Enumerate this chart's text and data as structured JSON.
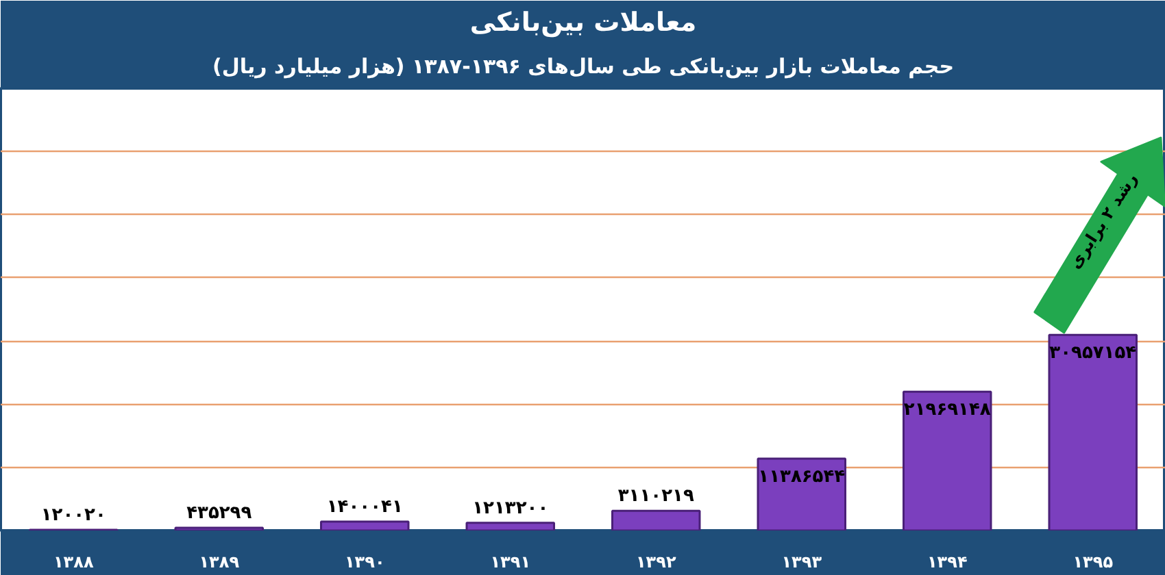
{
  "chart_data": {
    "type": "bar",
    "title": "معاملات بین‌بانکی",
    "subtitle": "حجم معاملات بازار بین‌بانکی طی سال‌های ۱۳۹۶-۱۳۸۷ (هزار میلیارد ریال)",
    "categories": [
      "۱۳۸۸",
      "۱۳۸۹",
      "۱۳۹۰",
      "۱۳۹۱",
      "۱۳۹۲",
      "۱۳۹۳",
      "۱۳۹۴",
      "۱۳۹۵"
    ],
    "values": [
      120020,
      435299,
      1400041,
      1213200,
      3110219,
      11386544,
      21969148,
      30957154
    ],
    "value_labels": [
      "۱۲۰۰۲۰",
      "۴۳۵۲۹۹",
      "۱۴۰۰۰۴۱",
      "۱۲۱۳۲۰۰",
      "۳۱۱۰۲۱۹",
      "۱۱۳۸۶۵۴۴",
      "۲۱۹۶۹۱۴۸",
      "۳۰۹۵۷۱۵۴"
    ],
    "color": "#7b3fbe",
    "ylim": [
      0,
      70000000
    ],
    "yticks": [
      {
        "value": 10000000,
        "label": null
      },
      {
        "value": 20000000,
        "label": null
      },
      {
        "value": 30000000,
        "label": null
      },
      {
        "value": 40000000,
        "label": null
      },
      {
        "value": 50000000,
        "label": null
      },
      {
        "value": 60000000,
        "label": null
      }
    ],
    "tick_labels": "x",
    "grid": "y",
    "annotations": [
      "رشد ۲ برابری"
    ]
  }
}
